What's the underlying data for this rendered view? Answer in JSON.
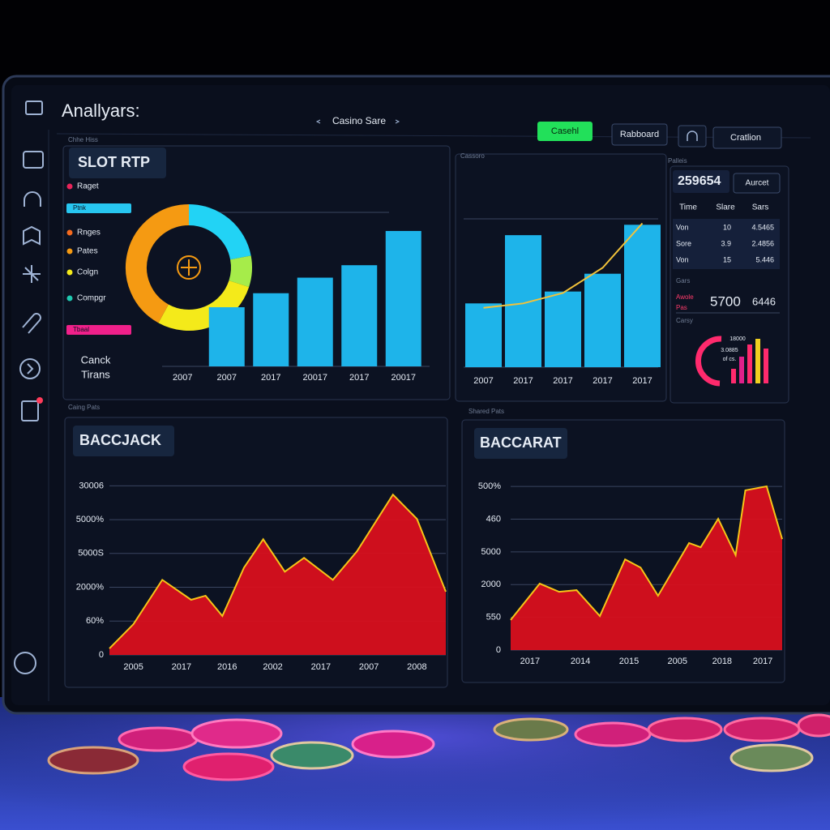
{
  "header": {
    "title": "Anallyars:",
    "tab": "Casino Sare",
    "buttons": [
      "Casehl",
      "Rabboard",
      "Cratlion"
    ]
  },
  "panel_captions": [
    "Chhe Hiss",
    "Cassoro",
    "Palleis",
    "Caing Pats",
    "Shared Pats"
  ],
  "slot_legend": [
    {
      "label": "Raget",
      "color": "#e8245a"
    },
    {
      "label": "Ptnk",
      "color": "#27c6f0",
      "style": "bar"
    },
    {
      "label": "Rnges",
      "color": "#f46a1e"
    },
    {
      "label": "Pates",
      "color": "#f59a12"
    },
    {
      "label": "Colgn",
      "color": "#f4ea1a"
    },
    {
      "label": "Compgr",
      "color": "#1fc8b0"
    },
    {
      "label": "Tbaal",
      "color": "#f0208a",
      "style": "bar"
    }
  ],
  "slot_note": [
    "Canck",
    "Tirans"
  ],
  "stats": {
    "big": "259654",
    "button": "Aurcet",
    "table": {
      "header": [
        "Time",
        "Slare",
        "Sars"
      ],
      "rows": [
        [
          "Von",
          "10",
          "4.5465"
        ],
        [
          "Sore",
          "3.9",
          "2.4856"
        ],
        [
          "Von",
          "15",
          "5.446"
        ]
      ]
    },
    "caption": "Gars",
    "label": [
      "Awole",
      "Pas"
    ],
    "value1": "5700",
    "value2": "6446",
    "caption2": "Carsy",
    "gauge_text": [
      "18000",
      "3.0885",
      "of cs."
    ]
  },
  "chart_data": [
    {
      "type": "donut",
      "values": [
        22,
        8,
        28,
        42
      ],
      "colors": [
        "#22d3f5",
        "#a6ec4a",
        "#f4ea1a",
        "#f59a12"
      ]
    },
    {
      "type": "bar",
      "title": "SLOT RTP",
      "categories": [
        "2007",
        "2007",
        "2017",
        "20017",
        "2017",
        "20017"
      ],
      "values": [
        null,
        38,
        47,
        57,
        65,
        87
      ],
      "color": "#1eb4ea",
      "ylim": [
        0,
        100
      ]
    },
    {
      "type": "bar",
      "categories": [
        "2007",
        "2017",
        "2017",
        "2017",
        "2017"
      ],
      "series": [
        {
          "type": "bar",
          "color": "#1eb4ea",
          "values": [
            43,
            89,
            51,
            63,
            96
          ]
        },
        {
          "type": "line",
          "color": "#f2c23a",
          "values": [
            40,
            43,
            50,
            67,
            97
          ]
        }
      ],
      "ylim": [
        0,
        100
      ]
    },
    {
      "type": "bar",
      "values": [
        18,
        33,
        48,
        55,
        43
      ],
      "colors": [
        "#ff2a6d",
        "#e0208a",
        "#ff2a6d",
        "#f0d020",
        "#ff2a6d"
      ],
      "ylim": [
        0,
        60
      ]
    },
    {
      "type": "area",
      "title": "BACCJACK",
      "x": [
        0,
        1,
        2.2,
        3.4,
        4.0,
        4.7,
        5.6,
        6.4,
        7.3,
        8.1,
        9.3,
        10.3,
        11.8,
        12.8,
        14
      ],
      "values": [
        0.19,
        0.91,
        2.22,
        1.63,
        1.75,
        1.15,
        2.58,
        3.42,
        2.46,
        2.87,
        2.22,
        3.06,
        4.74,
        4.02,
        1.87
      ],
      "xlim": [
        0,
        14
      ],
      "ylim": [
        0,
        5.2
      ],
      "xticks": [
        {
          "value": 1,
          "label": "2005"
        },
        {
          "value": 3,
          "label": "2017"
        },
        {
          "value": 4.9,
          "label": "2016"
        },
        {
          "value": 6.8,
          "label": "2002"
        },
        {
          "value": 8.8,
          "label": "2017"
        },
        {
          "value": 10.8,
          "label": "2007"
        },
        {
          "value": 12.8,
          "label": "2008"
        }
      ],
      "yticks": [
        0,
        {
          "value": 1,
          "label": "60%"
        },
        {
          "value": 2,
          "label": "2000%"
        },
        {
          "value": 3,
          "label": "5000S"
        },
        {
          "value": 4,
          "label": "5000%"
        },
        {
          "value": 5,
          "label": "30006"
        }
      ],
      "color": "#d9101e",
      "line_color": "#f5c518",
      "grid": true
    },
    {
      "type": "area",
      "title": "BACCARAT",
      "x": [
        0,
        1.5,
        2.5,
        3.4,
        4.6,
        5.9,
        6.7,
        7.6,
        9.2,
        9.8,
        10.7,
        11.6,
        12.1,
        13.2,
        14
      ],
      "values": [
        0.92,
        2.03,
        1.78,
        1.83,
        1.04,
        2.77,
        2.52,
        1.66,
        3.27,
        3.14,
        4.01,
        2.9,
        4.88,
        5.0,
        3.39
      ],
      "xlim": [
        0,
        14
      ],
      "ylim": [
        0,
        5.2
      ],
      "xticks": [
        {
          "value": 1,
          "label": "2017"
        },
        {
          "value": 3.6,
          "label": "2014"
        },
        {
          "value": 6.1,
          "label": "2015"
        },
        {
          "value": 8.6,
          "label": "2005"
        },
        {
          "value": 10.9,
          "label": "2018"
        },
        {
          "value": 13,
          "label": "2017"
        }
      ],
      "yticks": [
        0,
        {
          "value": 1,
          "label": "550"
        },
        {
          "value": 2,
          "label": "2000"
        },
        {
          "value": 3,
          "label": "5000"
        },
        {
          "value": 4,
          "label": "460"
        },
        {
          "value": 5,
          "label": "500%"
        }
      ],
      "color": "#d9101e",
      "line_color": "#f5c518",
      "grid": true
    }
  ]
}
